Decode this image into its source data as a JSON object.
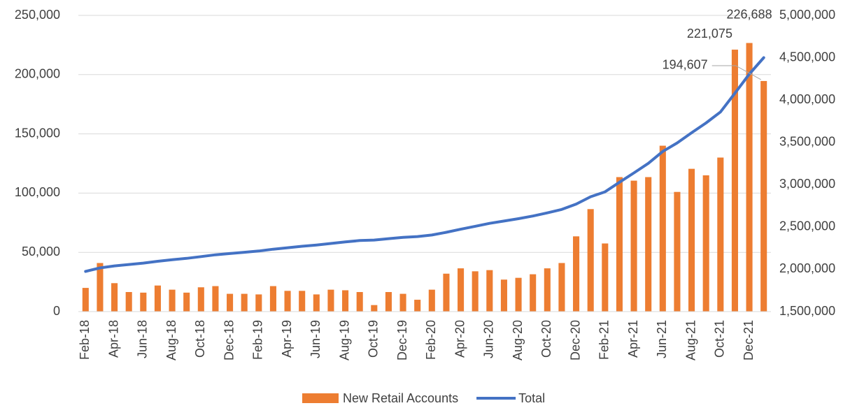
{
  "chart_data": {
    "type": "bar_line",
    "categories": [
      "Feb-18",
      null,
      "Apr-18",
      null,
      "Jun-18",
      null,
      "Aug-18",
      null,
      "Oct-18",
      null,
      "Dec-18",
      null,
      "Feb-19",
      null,
      "Apr-19",
      null,
      "Jun-19",
      null,
      "Aug-19",
      null,
      "Oct-19",
      null,
      "Dec-19",
      null,
      "Feb-20",
      null,
      "Apr-20",
      null,
      "Jun-20",
      null,
      "Aug-20",
      null,
      "Oct-20",
      null,
      "Dec-20",
      null,
      "Feb-21",
      null,
      "Apr-21",
      null,
      "Jun-21",
      null,
      "Aug-21",
      null,
      "Oct-21",
      null,
      "Dec-21",
      null
    ],
    "series": [
      {
        "name": "New Retail Accounts",
        "color": "#ed7d31",
        "kind": "bar",
        "values": [
          20000,
          41000,
          24000,
          16500,
          16000,
          22000,
          18500,
          16000,
          20500,
          21500,
          15000,
          15000,
          14500,
          21500,
          17500,
          17500,
          14500,
          18500,
          18000,
          16500,
          5500,
          16500,
          15000,
          10000,
          18500,
          32000,
          36500,
          34000,
          35000,
          27000,
          28500,
          31500,
          36500,
          41000,
          63500,
          86500,
          57500,
          113500,
          110500,
          113500,
          140000,
          101000,
          120500,
          115000,
          130000,
          221075,
          226688,
          194607
        ],
        "value_labels": [
          null,
          null,
          null,
          null,
          null,
          null,
          null,
          null,
          null,
          null,
          null,
          null,
          null,
          null,
          null,
          null,
          null,
          null,
          null,
          null,
          null,
          null,
          null,
          null,
          null,
          null,
          null,
          null,
          null,
          null,
          null,
          null,
          null,
          null,
          null,
          null,
          null,
          null,
          null,
          null,
          null,
          null,
          null,
          null,
          null,
          "221,075",
          "226,688",
          "194,607"
        ]
      },
      {
        "name": "Total",
        "color": "#4472c4",
        "kind": "line",
        "axis": "y2",
        "values": [
          1975000,
          2016000,
          2040000,
          2056500,
          2072500,
          2094500,
          2113000,
          2129000,
          2149500,
          2171000,
          2186000,
          2201000,
          2215500,
          2237000,
          2254500,
          2272000,
          2286500,
          2305000,
          2323000,
          2339500,
          2345000,
          2361500,
          2376500,
          2386500,
          2405000,
          2437000,
          2473500,
          2507500,
          2542500,
          2569500,
          2598000,
          2629500,
          2666000,
          2707000,
          2770500,
          2857000,
          2914500,
          3028000,
          3138500,
          3252000,
          3392000,
          3493000,
          3613500,
          3728500,
          3858500,
          4079575,
          4306263,
          4500870
        ]
      }
    ],
    "ylim": [
      0,
      250000
    ],
    "yticks": [
      0,
      {
        "value": 50000,
        "label": "50,000"
      },
      {
        "value": 100000,
        "label": "100,000"
      },
      {
        "value": 150000,
        "label": "150,000"
      },
      {
        "value": 200000,
        "label": "200,000"
      },
      {
        "value": 250000,
        "label": "250,000"
      }
    ],
    "y2lim": [
      1500000,
      5000000
    ],
    "y2ticks": [
      {
        "value": 1500000,
        "label": "1,500,000"
      },
      {
        "value": 2000000,
        "label": "2,000,000"
      },
      {
        "value": 2500000,
        "label": "2,500,000"
      },
      {
        "value": 3000000,
        "label": "3,000,000"
      },
      {
        "value": 3500000,
        "label": "3,500,000"
      },
      {
        "value": 4000000,
        "label": "4,000,000"
      },
      {
        "value": 4500000,
        "label": "4,500,000"
      },
      {
        "value": 5000000,
        "label": "5,000,000"
      }
    ],
    "grid": true,
    "legend": "bottom"
  }
}
